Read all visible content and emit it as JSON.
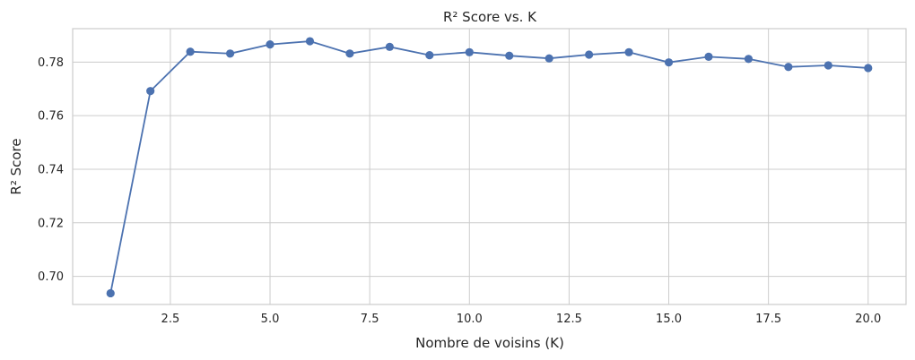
{
  "chart_data": {
    "type": "line",
    "title": "R² Score vs. K",
    "xlabel": "Nombre de voisins (K)",
    "ylabel": "R² Score",
    "xlim": [
      0.05,
      20.95
    ],
    "ylim": [
      0.6895,
      0.7925
    ],
    "xticks": [
      2.5,
      5.0,
      7.5,
      10.0,
      12.5,
      15.0,
      17.5,
      20.0
    ],
    "yticks": [
      0.7,
      0.72,
      0.74,
      0.76,
      0.78
    ],
    "grid": true,
    "line_color": "#4c72b0",
    "series": [
      {
        "x": [
          1,
          2,
          3,
          4,
          5,
          6,
          7,
          8,
          9,
          10,
          11,
          12,
          13,
          14,
          15,
          16,
          17,
          18,
          19,
          20
        ],
        "values": [
          0.6937,
          0.7692,
          0.7839,
          0.7832,
          0.7866,
          0.7878,
          0.7832,
          0.7857,
          0.7826,
          0.7837,
          0.7824,
          0.7814,
          0.7828,
          0.7837,
          0.7799,
          0.782,
          0.7812,
          0.7782,
          0.7788,
          0.7778
        ]
      }
    ]
  }
}
